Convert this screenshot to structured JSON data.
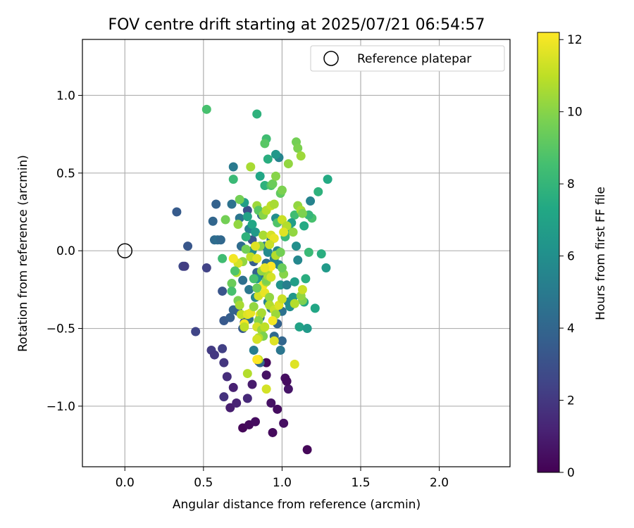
{
  "chart_data": {
    "type": "scatter",
    "title": "FOV centre drift starting at 2025/07/21 06:54:57",
    "xlabel": "Angular distance from reference (arcmin)",
    "ylabel": "Rotation from reference (arcmin)",
    "xlim": [
      -0.27,
      2.45
    ],
    "ylim": [
      -1.39,
      1.36
    ],
    "xticks": [
      0.0,
      0.5,
      1.0,
      1.5,
      2.0
    ],
    "xtick_labels": [
      "0.0",
      "0.5",
      "1.0",
      "1.5",
      "2.0"
    ],
    "yticks": [
      -1.0,
      -0.5,
      0.0,
      0.5,
      1.0
    ],
    "ytick_labels": [
      "−1.0",
      "−0.5",
      "0.0",
      "0.5",
      "1.0"
    ],
    "grid": true,
    "legend": {
      "placement": "top-right",
      "entries": [
        "Reference platepar"
      ]
    },
    "reference_point": {
      "x": 0.0,
      "y": 0.0
    },
    "colorbar": {
      "label": "Hours from first FF file",
      "range": [
        0,
        12.2
      ],
      "ticks": [
        0,
        2,
        4,
        6,
        8,
        10,
        12
      ],
      "tick_labels": [
        "0",
        "2",
        "4",
        "6",
        "8",
        "10",
        "12"
      ],
      "colormap": "viridis"
    },
    "points": [
      [
        1.16,
        -1.28,
        0.2
      ],
      [
        0.94,
        -1.17,
        0.3
      ],
      [
        0.75,
        -1.14,
        0.2
      ],
      [
        0.79,
        -1.12,
        0.3
      ],
      [
        0.83,
        -1.1,
        0.4
      ],
      [
        1.01,
        -1.11,
        0.5
      ],
      [
        0.97,
        -1.02,
        0.4
      ],
      [
        0.67,
        -1.01,
        1.0
      ],
      [
        0.71,
        -0.98,
        1.2
      ],
      [
        0.93,
        -0.98,
        0.6
      ],
      [
        0.78,
        -0.95,
        1.4
      ],
      [
        0.63,
        -0.94,
        1.8
      ],
      [
        0.69,
        -0.88,
        1.1
      ],
      [
        0.81,
        -0.86,
        0.9
      ],
      [
        1.04,
        -0.89,
        0.7
      ],
      [
        0.65,
        -0.81,
        1.6
      ],
      [
        1.02,
        -0.82,
        0.5
      ],
      [
        0.9,
        -0.8,
        0.6
      ],
      [
        1.03,
        -0.84,
        0.4
      ],
      [
        0.63,
        -0.72,
        1.9
      ],
      [
        0.9,
        -0.72,
        0.3
      ],
      [
        0.85,
        -0.71,
        0.8
      ],
      [
        0.55,
        -0.64,
        2.1
      ],
      [
        0.57,
        -0.67,
        2.0
      ],
      [
        0.62,
        -0.63,
        2.3
      ],
      [
        0.45,
        -0.52,
        2.5
      ],
      [
        0.33,
        0.25,
        3.5
      ],
      [
        0.4,
        0.03,
        3.3
      ],
      [
        0.37,
        -0.1,
        2.6
      ],
      [
        0.52,
        -0.11,
        2.4
      ],
      [
        0.38,
        -0.1,
        2.2
      ],
      [
        0.62,
        -0.26,
        3.2
      ],
      [
        0.63,
        -0.45,
        3.4
      ],
      [
        0.67,
        -0.43,
        3.6
      ],
      [
        0.58,
        0.3,
        3.8
      ],
      [
        0.56,
        0.19,
        4.0
      ],
      [
        0.57,
        0.07,
        4.2
      ],
      [
        0.59,
        0.07,
        4.4
      ],
      [
        0.61,
        0.07,
        4.1
      ],
      [
        0.69,
        0.54,
        5.0
      ],
      [
        0.68,
        0.3,
        4.6
      ],
      [
        0.73,
        0.21,
        4.8
      ],
      [
        0.74,
        0.03,
        4.3
      ],
      [
        0.75,
        -0.19,
        4.5
      ],
      [
        0.79,
        -0.25,
        4.9
      ],
      [
        0.69,
        -0.38,
        3.9
      ],
      [
        0.72,
        -0.39,
        3.7
      ],
      [
        0.75,
        -0.5,
        3.5
      ],
      [
        0.76,
        -0.46,
        3.1
      ],
      [
        0.82,
        -0.64,
        5.1
      ],
      [
        0.86,
        -0.72,
        4.0
      ],
      [
        0.78,
        0.26,
        3.0
      ],
      [
        0.79,
        0.14,
        5.4
      ],
      [
        0.81,
        0.07,
        3.2
      ],
      [
        0.82,
        -0.07,
        3.6
      ],
      [
        0.84,
        -0.14,
        3.8
      ],
      [
        0.87,
        0.23,
        4.2
      ],
      [
        0.88,
        -0.16,
        4.6
      ],
      [
        0.89,
        0.03,
        5.0
      ],
      [
        0.9,
        -0.08,
        4.4
      ],
      [
        0.91,
        -0.01,
        5.8
      ],
      [
        0.93,
        0.07,
        4.8
      ],
      [
        0.95,
        -0.05,
        5.2
      ],
      [
        0.96,
        0.21,
        6.0
      ],
      [
        0.97,
        0.0,
        5.6
      ],
      [
        0.98,
        -0.09,
        5.4
      ],
      [
        0.99,
        -0.22,
        6.2
      ],
      [
        1.0,
        -0.39,
        4.6
      ],
      [
        1.0,
        -0.58,
        4.0
      ],
      [
        0.99,
        -0.64,
        4.8
      ],
      [
        0.97,
        -0.47,
        3.8
      ],
      [
        0.95,
        -0.55,
        4.2
      ],
      [
        0.93,
        -0.37,
        5.0
      ],
      [
        0.91,
        -0.33,
        5.4
      ],
      [
        0.86,
        -0.43,
        4.9
      ],
      [
        0.83,
        -0.3,
        5.6
      ],
      [
        0.84,
        -0.18,
        6.2
      ],
      [
        0.81,
        0.0,
        5.8
      ],
      [
        0.79,
        -0.44,
        4.4
      ],
      [
        1.03,
        -0.22,
        5.2
      ],
      [
        1.04,
        -0.33,
        5.8
      ],
      [
        1.05,
        -0.36,
        6.0
      ],
      [
        1.07,
        -0.3,
        6.4
      ],
      [
        1.08,
        -0.2,
        6.8
      ],
      [
        1.09,
        0.03,
        6.0
      ],
      [
        1.1,
        -0.06,
        5.6
      ],
      [
        1.11,
        -0.49,
        7.0
      ],
      [
        1.16,
        -0.5,
        6.6
      ],
      [
        1.14,
        -0.33,
        7.2
      ],
      [
        1.15,
        -0.18,
        7.6
      ],
      [
        1.18,
        0.32,
        5.4
      ],
      [
        1.21,
        -0.37,
        7.2
      ],
      [
        1.25,
        -0.02,
        7.6
      ],
      [
        1.28,
        -0.11,
        6.6
      ],
      [
        1.23,
        0.38,
        7.8
      ],
      [
        1.29,
        0.46,
        7.4
      ],
      [
        1.17,
        -0.01,
        8.2
      ],
      [
        1.14,
        0.16,
        7.4
      ],
      [
        1.19,
        0.21,
        8.6
      ],
      [
        1.17,
        0.23,
        8.0
      ],
      [
        1.08,
        0.23,
        8.4
      ],
      [
        1.06,
        0.18,
        6.8
      ],
      [
        1.05,
        0.13,
        7.2
      ],
      [
        1.02,
        0.09,
        8.2
      ],
      [
        0.98,
        0.6,
        5.4
      ],
      [
        0.96,
        0.62,
        6.4
      ],
      [
        0.91,
        0.59,
        7.6
      ],
      [
        0.9,
        0.72,
        8.4
      ],
      [
        0.89,
        0.69,
        9.0
      ],
      [
        0.84,
        0.88,
        7.8
      ],
      [
        0.52,
        0.91,
        8.6
      ],
      [
        0.69,
        0.46,
        8.2
      ],
      [
        0.76,
        0.31,
        6.8
      ],
      [
        0.78,
        0.22,
        7.0
      ],
      [
        0.81,
        0.17,
        7.2
      ],
      [
        0.83,
        0.12,
        6.6
      ],
      [
        0.77,
        0.09,
        7.8
      ],
      [
        0.86,
        0.48,
        7.2
      ],
      [
        0.89,
        0.42,
        7.8
      ],
      [
        0.93,
        0.42,
        8.8
      ],
      [
        0.94,
        0.43,
        9.4
      ],
      [
        0.96,
        0.48,
        10.0
      ],
      [
        0.99,
        0.37,
        9.2
      ],
      [
        1.0,
        0.39,
        9.8
      ],
      [
        1.04,
        0.56,
        10.2
      ],
      [
        1.09,
        0.7,
        9.6
      ],
      [
        1.1,
        0.66,
        9.8
      ],
      [
        1.12,
        0.61,
        10.4
      ],
      [
        1.1,
        0.29,
        10.2
      ],
      [
        1.12,
        0.26,
        10.6
      ],
      [
        1.13,
        0.24,
        9.8
      ],
      [
        0.64,
        0.2,
        9.6
      ],
      [
        0.72,
        0.17,
        10.2
      ],
      [
        0.73,
        0.33,
        9.6
      ],
      [
        0.8,
        0.54,
        10.6
      ],
      [
        0.84,
        0.29,
        10.4
      ],
      [
        0.85,
        0.26,
        9.0
      ],
      [
        0.88,
        0.23,
        10.0
      ],
      [
        0.9,
        0.26,
        10.8
      ],
      [
        0.93,
        0.29,
        11.0
      ],
      [
        0.95,
        0.3,
        10.6
      ],
      [
        0.97,
        0.18,
        8.8
      ],
      [
        1.0,
        0.2,
        11.2
      ],
      [
        1.03,
        0.16,
        10.8
      ],
      [
        1.01,
        0.12,
        11.6
      ],
      [
        1.07,
        0.12,
        10.2
      ],
      [
        0.88,
        0.1,
        10.6
      ],
      [
        0.93,
        0.1,
        11.4
      ],
      [
        0.95,
        0.08,
        11.8
      ],
      [
        0.92,
        0.04,
        11.2
      ],
      [
        0.86,
        0.03,
        10.0
      ],
      [
        0.83,
        0.03,
        11.6
      ],
      [
        0.77,
        0.01,
        9.6
      ],
      [
        0.8,
        -0.04,
        11.0
      ],
      [
        0.84,
        -0.05,
        11.6
      ],
      [
        0.75,
        -0.07,
        10.2
      ],
      [
        0.72,
        -0.08,
        11.4
      ],
      [
        0.69,
        -0.05,
        12.0
      ],
      [
        0.71,
        -0.14,
        10.8
      ],
      [
        0.68,
        -0.21,
        9.4
      ],
      [
        0.68,
        -0.26,
        8.6
      ],
      [
        0.72,
        -0.32,
        9.8
      ],
      [
        0.73,
        -0.35,
        10.6
      ],
      [
        0.74,
        -0.41,
        11.0
      ],
      [
        0.78,
        -0.41,
        11.6
      ],
      [
        0.8,
        -0.4,
        11.8
      ],
      [
        0.76,
        -0.47,
        12.0
      ],
      [
        0.76,
        -0.49,
        11.0
      ],
      [
        0.85,
        -0.29,
        11.4
      ],
      [
        0.89,
        -0.27,
        11.8
      ],
      [
        0.88,
        -0.22,
        12.0
      ],
      [
        0.9,
        -0.2,
        10.4
      ],
      [
        0.91,
        -0.13,
        11.6
      ],
      [
        0.93,
        -0.1,
        12.2
      ],
      [
        0.96,
        -0.03,
        10.8
      ],
      [
        0.99,
        -0.01,
        9.6
      ],
      [
        0.92,
        -0.3,
        10.2
      ],
      [
        0.92,
        -0.35,
        10.8
      ],
      [
        0.95,
        -0.38,
        11.2
      ],
      [
        0.96,
        -0.41,
        10.4
      ],
      [
        0.98,
        -0.35,
        11.6
      ],
      [
        1.0,
        -0.31,
        11.2
      ],
      [
        0.86,
        -0.41,
        11.8
      ],
      [
        0.87,
        -0.4,
        10.6
      ],
      [
        0.85,
        -0.45,
        10.0
      ],
      [
        0.84,
        -0.49,
        11.4
      ],
      [
        0.87,
        -0.51,
        10.4
      ],
      [
        0.89,
        -0.49,
        11.0
      ],
      [
        0.94,
        -0.45,
        12.0
      ],
      [
        0.95,
        -0.58,
        11.6
      ],
      [
        0.88,
        -0.55,
        9.8
      ],
      [
        0.85,
        -0.56,
        10.8
      ],
      [
        0.84,
        -0.57,
        11.4
      ],
      [
        0.85,
        -0.7,
        11.0
      ],
      [
        0.84,
        -0.7,
        12.2
      ],
      [
        0.78,
        -0.79,
        10.8
      ],
      [
        0.9,
        -0.89,
        11.4
      ],
      [
        1.08,
        -0.73,
        11.6
      ],
      [
        1.13,
        -0.32,
        9.8
      ],
      [
        1.12,
        -0.29,
        10.2
      ],
      [
        1.13,
        -0.25,
        11.2
      ],
      [
        1.08,
        -0.34,
        10.8
      ],
      [
        0.82,
        -0.36,
        10.2
      ],
      [
        0.84,
        -0.24,
        9.4
      ],
      [
        0.9,
        -0.19,
        9.8
      ],
      [
        0.91,
        -0.16,
        10.6
      ],
      [
        0.87,
        -0.13,
        10.2
      ],
      [
        0.89,
        -0.11,
        11.8
      ],
      [
        0.93,
        -0.17,
        11.4
      ],
      [
        1.01,
        -0.15,
        10.0
      ],
      [
        1.0,
        -0.11,
        9.4
      ],
      [
        0.82,
        -0.18,
        8.6
      ],
      [
        0.7,
        -0.13,
        8.8
      ],
      [
        0.62,
        -0.05,
        8.4
      ]
    ]
  }
}
